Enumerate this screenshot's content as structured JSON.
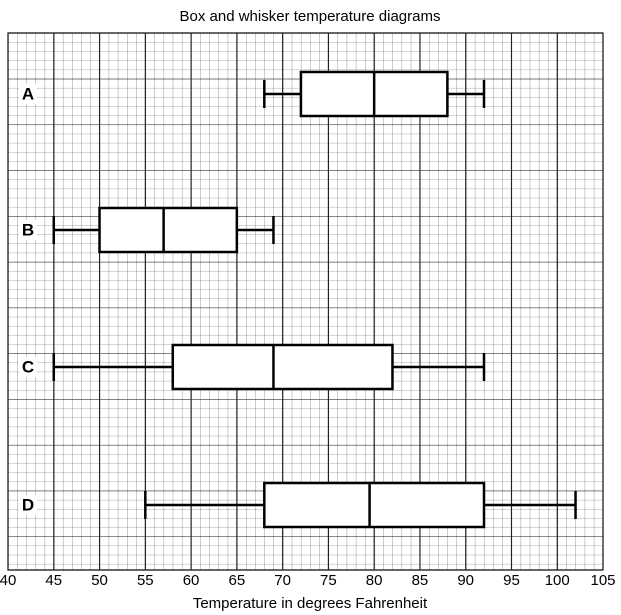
{
  "chart_data": {
    "type": "boxplot",
    "title": "Box and whisker temperature diagrams",
    "xlabel": "Temperature in degrees Fahrenheit",
    "categories": [
      "A",
      "B",
      "C",
      "D"
    ],
    "min": [
      68,
      45,
      45,
      55
    ],
    "q1": [
      72,
      50,
      58,
      68
    ],
    "median": [
      80,
      57,
      69,
      79.5
    ],
    "q3": [
      88,
      65,
      82,
      92
    ],
    "max": [
      92,
      69,
      92,
      102
    ],
    "xlim": [
      40,
      105
    ],
    "xticks": [
      40,
      45,
      50,
      55,
      60,
      65,
      70,
      75,
      80,
      85,
      90,
      95,
      100,
      105
    ],
    "grid": true,
    "color": "#000000"
  }
}
